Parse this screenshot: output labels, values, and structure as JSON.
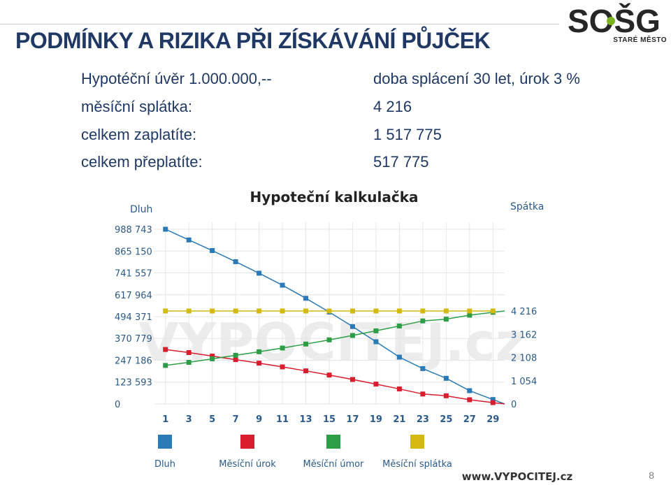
{
  "slide": {
    "title": "PODMÍNKY A RIZIKA PŘI ZÍSKÁVÁNÍ PŮJČEK",
    "page_number": "8"
  },
  "logo": {
    "text": "SOŠG",
    "subtitle": "STARÉ MĚSTO"
  },
  "info": {
    "loan": "Hypotéční úvěr 1.000.000,--",
    "terms": "doba splácení  30 let, úrok 3 %",
    "monthly_label": "měsíční splátka:",
    "monthly_value": "4 216",
    "total_label": "celkem zaplatíte:",
    "total_value": "1 517 775",
    "over_label": "celkem přeplatíte:",
    "over_value": "517 775"
  },
  "chart_data": {
    "type": "line",
    "title": "Hypoteční kalkulačka",
    "left_axis_label": "Dluh",
    "right_axis_label": "Spátka",
    "watermark": "VYPOCITEJ.cz",
    "footer": "www.VYPOCITEJ.cz",
    "x": [
      1,
      3,
      5,
      7,
      9,
      11,
      13,
      15,
      17,
      19,
      21,
      23,
      25,
      27,
      29
    ],
    "x_ticks": [
      "1",
      "3",
      "5",
      "7",
      "9",
      "11",
      "13",
      "15",
      "17",
      "19",
      "21",
      "23",
      "25",
      "27",
      "29"
    ],
    "left_ticks": [
      "0",
      "123 593",
      "247 186",
      "370 779",
      "494 371",
      "617 964",
      "741 557",
      "865 150",
      "988 743"
    ],
    "right_ticks": [
      "0",
      "1 054",
      "2 108",
      "3 162",
      "4 216"
    ],
    "left_range": [
      0,
      988743
    ],
    "right_range": [
      0,
      4216
    ],
    "end_x": 30,
    "series": [
      {
        "name": "Dluh",
        "axis": "left",
        "color": "#2a7ab8",
        "values": [
          988743,
          928000,
          868000,
          805000,
          740000,
          672000,
          598000,
          520000,
          438000,
          352000,
          265000,
          200000,
          145000,
          75000,
          25000
        ],
        "end": 0
      },
      {
        "name": "Měsíční úrok",
        "axis": "right",
        "color": "#d81e2e",
        "values": [
          2470,
          2330,
          2170,
          2010,
          1850,
          1680,
          1500,
          1310,
          1110,
          900,
          680,
          450,
          370,
          190,
          60
        ],
        "end": 0
      },
      {
        "name": "Měsíční úmor",
        "axis": "right",
        "color": "#2e9e46",
        "values": [
          1746,
          1886,
          2046,
          2206,
          2366,
          2536,
          2716,
          2906,
          3106,
          3316,
          3536,
          3766,
          3846,
          4026,
          4156
        ],
        "end": 4216
      },
      {
        "name": "Měsíční splátka",
        "axis": "right",
        "color": "#d4b90f",
        "values": [
          4216,
          4216,
          4216,
          4216,
          4216,
          4216,
          4216,
          4216,
          4216,
          4216,
          4216,
          4216,
          4216,
          4216,
          4216
        ]
      }
    ]
  }
}
